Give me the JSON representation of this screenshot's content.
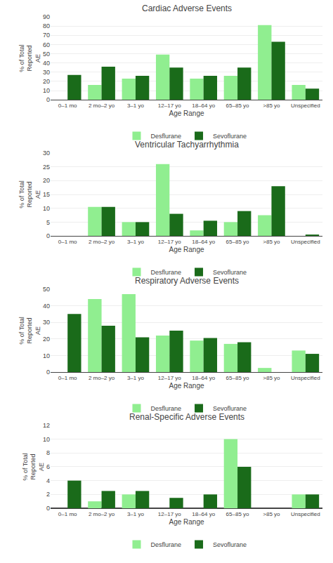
{
  "chart_data": [
    {
      "type": "bar",
      "title": "Cardiac Adverse Events",
      "categories": [
        "0–1 mo",
        "2 mo–2 yo",
        "3–1 yo",
        "12–17 yo",
        "18–64 yo",
        "65–85 yo",
        ">85 yo",
        "Unspecified"
      ],
      "series": [
        {
          "name": "Desflurane",
          "color": "#90EE90",
          "values": [
            0,
            16,
            23,
            49,
            23,
            26,
            81,
            16
          ]
        },
        {
          "name": "Sevoflurane",
          "color": "#1a6b1a",
          "values": [
            27,
            36,
            26,
            35,
            26,
            35,
            63,
            12
          ]
        }
      ],
      "xlabel": "Age Range",
      "ylabel": "% of Total\nReported\nAE",
      "ylim": [
        0,
        90
      ],
      "yticks": [
        0,
        10,
        20,
        30,
        40,
        50,
        60,
        70,
        80,
        90
      ],
      "grid": true,
      "legend": "bottom"
    },
    {
      "type": "bar",
      "title": "Ventricular Tachyarrhythmia",
      "categories": [
        "0–1 mo",
        "2 mo–2 yo",
        "3–1 yo",
        "12–17 yo",
        "18–64 yo",
        "65–85 yo",
        ">85 yo",
        "Unspecified"
      ],
      "series": [
        {
          "name": "Desflurane",
          "color": "#90EE90",
          "values": [
            0,
            10.5,
            5,
            26,
            2,
            5,
            7.5,
            0
          ]
        },
        {
          "name": "Sevoflurane",
          "color": "#1a6b1a",
          "values": [
            0,
            10.5,
            5,
            8,
            5.5,
            9,
            18,
            0.5
          ]
        }
      ],
      "xlabel": "Age Range",
      "ylabel": "% of Total\nReported\nAE",
      "ylim": [
        0,
        30
      ],
      "yticks": [
        0,
        5,
        10,
        15,
        20,
        25,
        30
      ],
      "grid": true,
      "legend": "bottom"
    },
    {
      "type": "bar",
      "title": "Respiratory Adverse Events",
      "categories": [
        "0–1 mo",
        "2 mo–2 yo",
        "3–1 yo",
        "12–17 yo",
        "18–64 yo",
        "65–85 yo",
        ">85 yo",
        "Unspecified"
      ],
      "series": [
        {
          "name": "Desflurane",
          "color": "#90EE90",
          "values": [
            0,
            44,
            47,
            22,
            19,
            17,
            2.5,
            13
          ]
        },
        {
          "name": "Sevoflurane",
          "color": "#1a6b1a",
          "values": [
            35,
            28,
            21,
            25,
            20.5,
            18,
            0,
            11
          ]
        }
      ],
      "xlabel": "Age Range",
      "ylabel": "% of Total\nReported\nAE",
      "ylim": [
        0,
        50
      ],
      "yticks": [
        0,
        10,
        20,
        30,
        40,
        50
      ],
      "grid": true,
      "legend": "bottom"
    },
    {
      "type": "bar",
      "title": "Renal-Specific Adverse Events",
      "categories": [
        "0–1 mo",
        "2 mo–2 yo",
        "3–1 yo",
        "12–17 yo",
        "18–64 yo",
        "65–85 yo",
        ">85 yo",
        "Unspecified"
      ],
      "series": [
        {
          "name": "Desflurane",
          "color": "#90EE90",
          "values": [
            0,
            1,
            2,
            0,
            0,
            10,
            0,
            2
          ]
        },
        {
          "name": "Sevoflurane",
          "color": "#1a6b1a",
          "values": [
            4,
            2.5,
            2.5,
            1.5,
            2,
            6,
            0,
            2
          ]
        }
      ],
      "xlabel": "Age Range",
      "ylabel": "% of Total\nReported\nAE",
      "ylim": [
        0,
        12
      ],
      "yticks": [
        0,
        2,
        4,
        6,
        8,
        10,
        12
      ],
      "grid": true,
      "legend": "bottom"
    }
  ]
}
